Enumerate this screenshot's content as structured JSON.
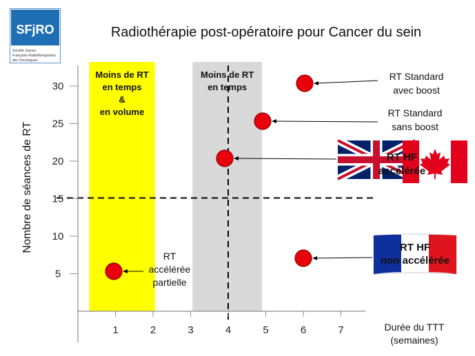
{
  "title": "Radiothérapie post-opératoire pour Cancer du sein",
  "logo": {
    "brand": "SFjRO",
    "line1": "Société Jeunes",
    "line2": "Française Radiothérapeutes",
    "line3": "des Oncologues"
  },
  "colors": {
    "logo_blue": "#1f6fb5",
    "yellow_zone": "#ffff00",
    "grey_zone": "#d9d9d9",
    "point_fill": "#e8000b",
    "point_stroke": "#8b0000"
  },
  "chart_data": {
    "type": "scatter",
    "title": "Radiothérapie post-opératoire pour Cancer du sein",
    "xlabel": "Durée du TTT (semaines)",
    "ylabel": "Nombre de séances de RT",
    "x_ticks": [
      1,
      2,
      3,
      4,
      5,
      6,
      7
    ],
    "y_ticks": [
      5,
      10,
      15,
      20,
      25,
      30
    ],
    "xlim": [
      -0.1,
      8
    ],
    "ylim": [
      0,
      32
    ],
    "grid": false,
    "reference_lines": [
      {
        "orientation": "vertical",
        "value": 4,
        "style": "dashed"
      },
      {
        "orientation": "horizontal",
        "value": 15,
        "style": "dashed"
      }
    ],
    "shaded_regions": [
      {
        "label_lines": [
          "Moins de RT",
          "en temps",
          "&",
          "en volume"
        ],
        "x_range": [
          0.3,
          2.05
        ],
        "color": "yellow"
      },
      {
        "label_lines": [
          "Moins de RT",
          "en temps"
        ],
        "x_range": [
          3.05,
          4.9
        ],
        "color": "grey"
      }
    ],
    "points": [
      {
        "x": 6,
        "y": 30,
        "label_lines": [
          "RT Standard",
          "avec boost"
        ]
      },
      {
        "x": 5,
        "y": 25,
        "label_lines": [
          "RT Standard",
          "sans boost"
        ]
      },
      {
        "x": 4,
        "y": 20,
        "label_lines": [
          "RT HF",
          "accélérée"
        ]
      },
      {
        "x": 6,
        "y": 7,
        "label_lines": [
          "RT HF",
          "non accélérée"
        ]
      },
      {
        "x": 1,
        "y": 5.5,
        "label_lines": [
          "RT",
          "accélérée",
          "partielle"
        ]
      }
    ]
  },
  "flags": {
    "uk": "uk-flag-icon",
    "canada": "canada-flag-icon",
    "france": "france-flag-icon"
  }
}
